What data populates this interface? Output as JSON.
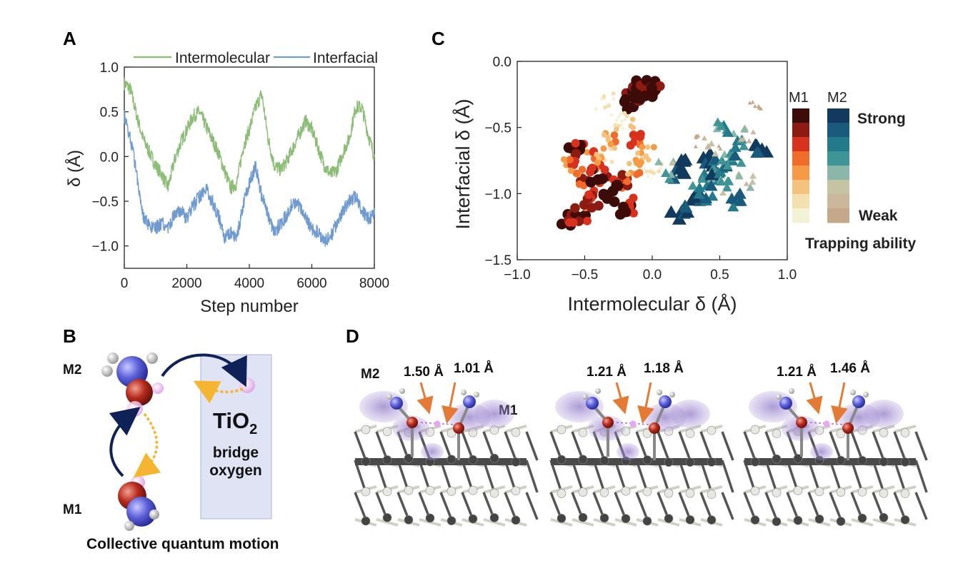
{
  "panel_labels": {
    "a": "A",
    "b": "B",
    "c": "C",
    "d": "D"
  },
  "chart_data": [
    {
      "type": "line",
      "panel": "A",
      "xlabel": "Step number",
      "ylabel": "δ (Å)",
      "xlim": [
        0,
        8000
      ],
      "ylim": [
        -1.25,
        1.0
      ],
      "xticks": [
        0,
        2000,
        4000,
        6000,
        8000
      ],
      "yticks": [
        1.0,
        0.5,
        0.0,
        -0.5,
        -1.0
      ],
      "xtick_labels": [
        "0",
        "2000",
        "4000",
        "6000",
        "8000"
      ],
      "ytick_labels": [
        "1.0",
        "0.5",
        "0.0",
        "−0.5",
        "−1.0"
      ],
      "legend_position": "top",
      "series": [
        {
          "name": "Intermolecular",
          "color": "#8cbd76",
          "x": [
            0,
            200,
            400,
            600,
            800,
            1000,
            1200,
            1400,
            1600,
            1800,
            2000,
            2200,
            2400,
            2600,
            2800,
            3000,
            3200,
            3400,
            3600,
            3800,
            4000,
            4200,
            4400,
            4600,
            4800,
            5000,
            5200,
            5400,
            5600,
            5800,
            6000,
            6200,
            6400,
            6600,
            6800,
            7000,
            7200,
            7400,
            7600,
            7800,
            8000
          ],
          "values": [
            0.82,
            0.75,
            0.45,
            0.2,
            0.05,
            -0.1,
            -0.2,
            -0.35,
            -0.05,
            0.15,
            0.3,
            0.45,
            0.5,
            0.35,
            0.2,
            0.05,
            -0.15,
            -0.35,
            -0.3,
            0.1,
            0.3,
            0.55,
            0.7,
            0.2,
            -0.1,
            -0.15,
            -0.05,
            0.1,
            0.25,
            0.4,
            0.3,
            0.1,
            -0.1,
            -0.2,
            -0.15,
            0.05,
            0.2,
            0.55,
            0.55,
            0.25,
            0.0
          ]
        },
        {
          "name": "Interfacial",
          "color": "#6f9bd1",
          "x": [
            0,
            200,
            400,
            600,
            800,
            1000,
            1200,
            1400,
            1600,
            1800,
            2000,
            2200,
            2400,
            2600,
            2800,
            3000,
            3200,
            3400,
            3600,
            3800,
            4000,
            4200,
            4400,
            4600,
            4800,
            5000,
            5200,
            5400,
            5600,
            5800,
            6000,
            6200,
            6400,
            6600,
            6800,
            7000,
            7200,
            7400,
            7600,
            7800,
            8000
          ],
          "values": [
            0.45,
            0.2,
            -0.2,
            -0.65,
            -0.8,
            -0.8,
            -0.75,
            -0.8,
            -0.65,
            -0.6,
            -0.7,
            -0.55,
            -0.45,
            -0.35,
            -0.5,
            -0.65,
            -0.9,
            -0.85,
            -0.9,
            -0.55,
            -0.3,
            -0.1,
            -0.45,
            -0.65,
            -0.85,
            -0.75,
            -0.65,
            -0.5,
            -0.55,
            -0.7,
            -0.8,
            -0.85,
            -0.95,
            -0.9,
            -0.75,
            -0.6,
            -0.5,
            -0.45,
            -0.6,
            -0.7,
            -0.65
          ]
        }
      ]
    },
    {
      "type": "scatter",
      "panel": "C",
      "xlabel": "Intermolecular δ (Å)",
      "ylabel": "Interfacial δ (Å)",
      "xlim": [
        -1.0,
        1.0
      ],
      "ylim": [
        -1.5,
        0.0
      ],
      "xticks": [
        -1.0,
        -0.5,
        0.0,
        0.5,
        1.0
      ],
      "yticks": [
        0.0,
        -0.5,
        -1.0,
        -1.5
      ],
      "xtick_labels": [
        "−1.0",
        "−0.5",
        "0.0",
        "0.5",
        "1.0"
      ],
      "ytick_labels": [
        "0.0",
        "−0.5",
        "−1.0",
        "−1.5"
      ],
      "legend_position": "right",
      "series": [
        {
          "name": "M1",
          "marker": "circle",
          "points": [
            {
              "x": -0.6,
              "y": -1.2,
              "level": 0
            },
            {
              "x": -0.55,
              "y": -1.15,
              "level": 1
            },
            {
              "x": -0.5,
              "y": -0.95,
              "level": 2
            },
            {
              "x": -0.45,
              "y": -0.75,
              "level": 3
            },
            {
              "x": -0.4,
              "y": -0.85,
              "level": 1
            },
            {
              "x": -0.35,
              "y": -0.7,
              "level": 5
            },
            {
              "x": -0.3,
              "y": -0.6,
              "level": 4
            },
            {
              "x": -0.25,
              "y": -0.9,
              "level": 2
            },
            {
              "x": -0.2,
              "y": -0.5,
              "level": 6
            },
            {
              "x": -0.15,
              "y": -0.3,
              "level": 0
            },
            {
              "x": -0.1,
              "y": -0.25,
              "level": 0
            },
            {
              "x": -0.05,
              "y": -0.2,
              "level": 0
            },
            {
              "x": 0.0,
              "y": -0.2,
              "level": 0
            },
            {
              "x": -0.2,
              "y": -1.1,
              "level": 1
            },
            {
              "x": -0.3,
              "y": -1.0,
              "level": 0
            },
            {
              "x": -0.45,
              "y": -1.05,
              "level": 2
            },
            {
              "x": -0.55,
              "y": -0.65,
              "level": 1
            },
            {
              "x": -0.6,
              "y": -0.8,
              "level": 3
            },
            {
              "x": -0.25,
              "y": -0.45,
              "level": 7
            },
            {
              "x": -0.35,
              "y": -0.3,
              "level": 7
            },
            {
              "x": -0.1,
              "y": -0.6,
              "level": 3
            },
            {
              "x": -0.05,
              "y": -0.7,
              "level": 5
            },
            {
              "x": 0.0,
              "y": -0.8,
              "level": 6
            },
            {
              "x": -0.15,
              "y": -0.8,
              "level": 4
            }
          ]
        },
        {
          "name": "M2",
          "marker": "triangle",
          "points": [
            {
              "x": 0.2,
              "y": -1.15,
              "level": 0
            },
            {
              "x": 0.3,
              "y": -1.05,
              "level": 1
            },
            {
              "x": 0.35,
              "y": -0.9,
              "level": 2
            },
            {
              "x": 0.4,
              "y": -0.75,
              "level": 0
            },
            {
              "x": 0.45,
              "y": -0.85,
              "level": 3
            },
            {
              "x": 0.5,
              "y": -0.8,
              "level": 1
            },
            {
              "x": 0.55,
              "y": -0.7,
              "level": 4
            },
            {
              "x": 0.6,
              "y": -0.75,
              "level": 2
            },
            {
              "x": 0.65,
              "y": -0.6,
              "level": 3
            },
            {
              "x": 0.7,
              "y": -0.55,
              "level": 5
            },
            {
              "x": 0.8,
              "y": -0.65,
              "level": 0
            },
            {
              "x": 0.6,
              "y": -1.05,
              "level": 1
            },
            {
              "x": 0.15,
              "y": -0.85,
              "level": 2
            },
            {
              "x": 0.1,
              "y": -0.8,
              "level": 4
            },
            {
              "x": 0.25,
              "y": -0.8,
              "level": 0
            },
            {
              "x": 0.5,
              "y": -0.5,
              "level": 3
            },
            {
              "x": 0.45,
              "y": -0.65,
              "level": 6
            },
            {
              "x": 0.7,
              "y": -0.9,
              "level": 5
            },
            {
              "x": 0.35,
              "y": -0.6,
              "level": 7
            },
            {
              "x": 0.75,
              "y": -0.3,
              "level": 7
            },
            {
              "x": 0.4,
              "y": -1.0,
              "level": 2
            },
            {
              "x": 0.55,
              "y": -0.95,
              "level": 4
            }
          ]
        }
      ]
    }
  ],
  "colorbar": {
    "m1_label": "M1",
    "m2_label": "M2",
    "strong_label": "Strong",
    "weak_label": "Weak",
    "title": "Trapping ability",
    "m1_colors": [
      "#3d0b08",
      "#8e1b12",
      "#d8311e",
      "#ef6c2a",
      "#f59b45",
      "#f5c27e",
      "#f4dfae",
      "#f3f1d6"
    ],
    "m2_colors": [
      "#123a5e",
      "#1a5a7d",
      "#227a8a",
      "#3f9596",
      "#8ab7aa",
      "#c4c4a4",
      "#cbb79b",
      "#c5a88a"
    ]
  },
  "panel_b": {
    "m2_label": "M2",
    "m1_label": "M1",
    "tio2_main": "TiO",
    "tio2_sub": "2",
    "bridge_text": "bridge",
    "oxygen_text": "oxygen",
    "caption": "Collective quantum motion"
  },
  "panel_d": {
    "m2_label": "M2",
    "m1_label": "M1",
    "snapshots": [
      {
        "left": "1.50 Å",
        "right": "1.01 Å"
      },
      {
        "left": "1.21 Å",
        "right": "1.18 Å"
      },
      {
        "left": "1.21 Å",
        "right": "1.46 Å"
      }
    ]
  }
}
